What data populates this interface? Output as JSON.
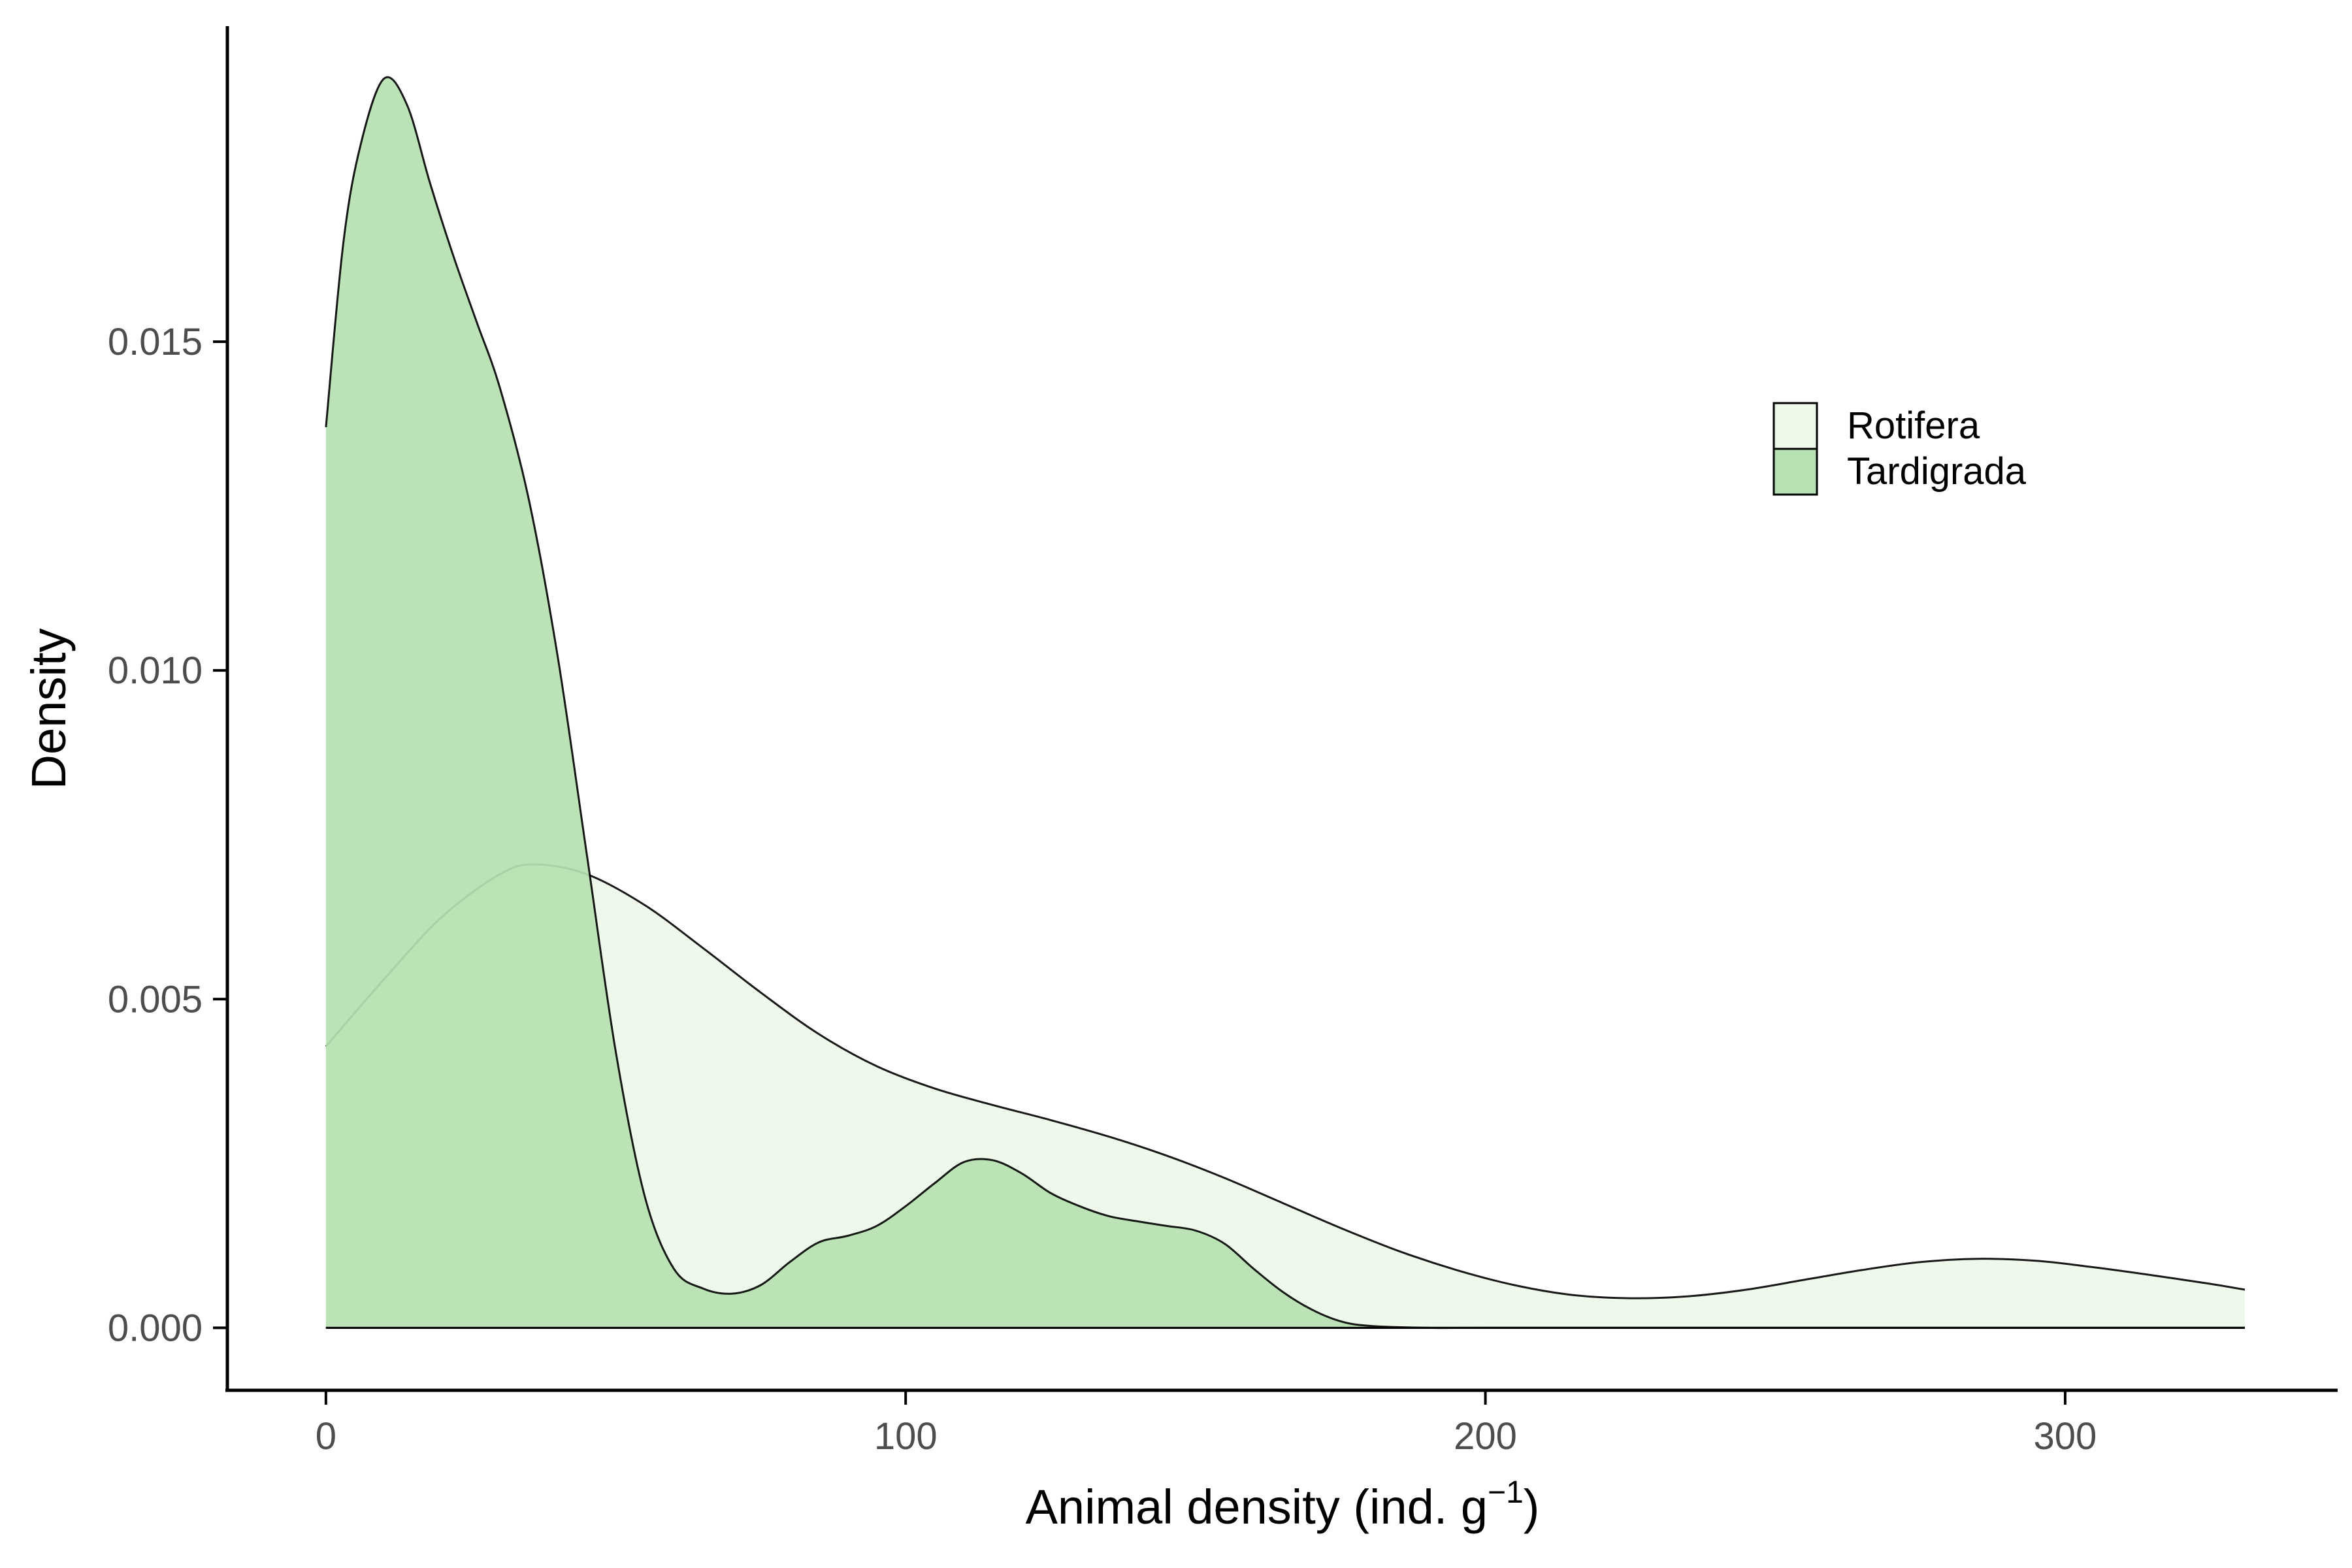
{
  "chart_data": {
    "type": "area",
    "title": "",
    "xlabel": "Animal density (ind. g",
    "xlabel_superscript": "−1",
    "xlabel_suffix": ")",
    "ylabel": "Density",
    "xlim": [
      -17,
      347
    ],
    "ylim": [
      -0.00095,
      0.0198
    ],
    "x_ticks": [
      0,
      100,
      200,
      300
    ],
    "x_tick_labels": [
      "0",
      "100",
      "200",
      "300"
    ],
    "y_ticks": [
      0,
      0.005,
      0.01,
      0.015
    ],
    "y_tick_labels": [
      "0.000",
      "0.005",
      "0.010",
      "0.015"
    ],
    "grid": false,
    "legend_position": "top-right",
    "series": [
      {
        "name": "Rotifera",
        "fill": "#edf8e9",
        "x": [
          0,
          10,
          20,
          30,
          36,
          45,
          55,
          65,
          75,
          85,
          95,
          105,
          115,
          125,
          135,
          145,
          155,
          165,
          175,
          185,
          195,
          205,
          215,
          225,
          235,
          245,
          255,
          265,
          275,
          285,
          295,
          305,
          315,
          325,
          331
        ],
        "values": [
          0.00428,
          0.0053,
          0.00625,
          0.0069,
          0.00705,
          0.0069,
          0.00643,
          0.00578,
          0.0051,
          0.00447,
          0.00398,
          0.00364,
          0.00339,
          0.00316,
          0.00291,
          0.00262,
          0.00228,
          0.0019,
          0.00152,
          0.00117,
          0.00088,
          0.00065,
          0.0005,
          0.00045,
          0.00048,
          0.00058,
          0.00073,
          0.00088,
          0.001,
          0.00105,
          0.00102,
          0.00092,
          0.0008,
          0.00067,
          0.00058
        ]
      },
      {
        "name": "Tardigrada",
        "fill": "#b6e1b1",
        "x": [
          0,
          3,
          6,
          10,
          14,
          18,
          22,
          26,
          30,
          35,
          40,
          45,
          50,
          55,
          60,
          65,
          70,
          75,
          80,
          85,
          90,
          95,
          100,
          105,
          110,
          115,
          120,
          125,
          130,
          135,
          140,
          145,
          150,
          155,
          160,
          165,
          170,
          175,
          180,
          190,
          200,
          250,
          300,
          331
        ],
        "values": [
          0.0137,
          0.0165,
          0.018,
          0.019,
          0.0186,
          0.0174,
          0.0163,
          0.0153,
          0.0143,
          0.0126,
          0.0102,
          0.0072,
          0.0042,
          0.002,
          0.0009,
          0.0006,
          0.00052,
          0.00065,
          0.001,
          0.0013,
          0.0014,
          0.00155,
          0.00185,
          0.0022,
          0.00252,
          0.00255,
          0.00235,
          0.00205,
          0.00185,
          0.0017,
          0.00162,
          0.00155,
          0.00148,
          0.00128,
          0.0009,
          0.00055,
          0.00028,
          0.0001,
          3e-05,
          0.0,
          0.0,
          0.0,
          0.0,
          0.0
        ]
      }
    ]
  }
}
